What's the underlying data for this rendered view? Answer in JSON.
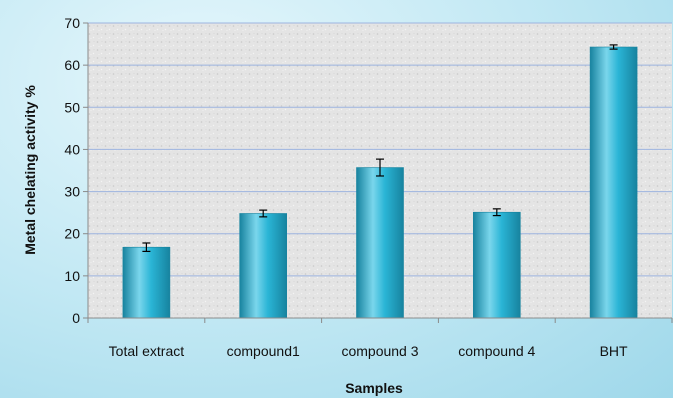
{
  "chart_data": {
    "type": "bar",
    "title": "",
    "xlabel": "Samples",
    "ylabel": "Metal chelating  activity %",
    "categories": [
      "Total extract",
      "compound1",
      "compound 3",
      "compound 4",
      "BHT"
    ],
    "values": [
      16.8,
      24.8,
      35.7,
      25.1,
      64.3
    ],
    "errors": [
      1.0,
      0.8,
      2.0,
      0.8,
      0.5
    ],
    "ylim": [
      0,
      70
    ],
    "yticks": [
      "0",
      "10",
      "20",
      "30",
      "40",
      "50",
      "60",
      "70"
    ],
    "grid": true,
    "legend": "none",
    "colors": {
      "bar": "#2ab5d6",
      "bar_dark": "#17839f",
      "bar_light": "#7ad6ec",
      "gridline": "#9db4e0",
      "plot_background": "#e6e6e6",
      "page_background": "#bfe7f3"
    }
  }
}
